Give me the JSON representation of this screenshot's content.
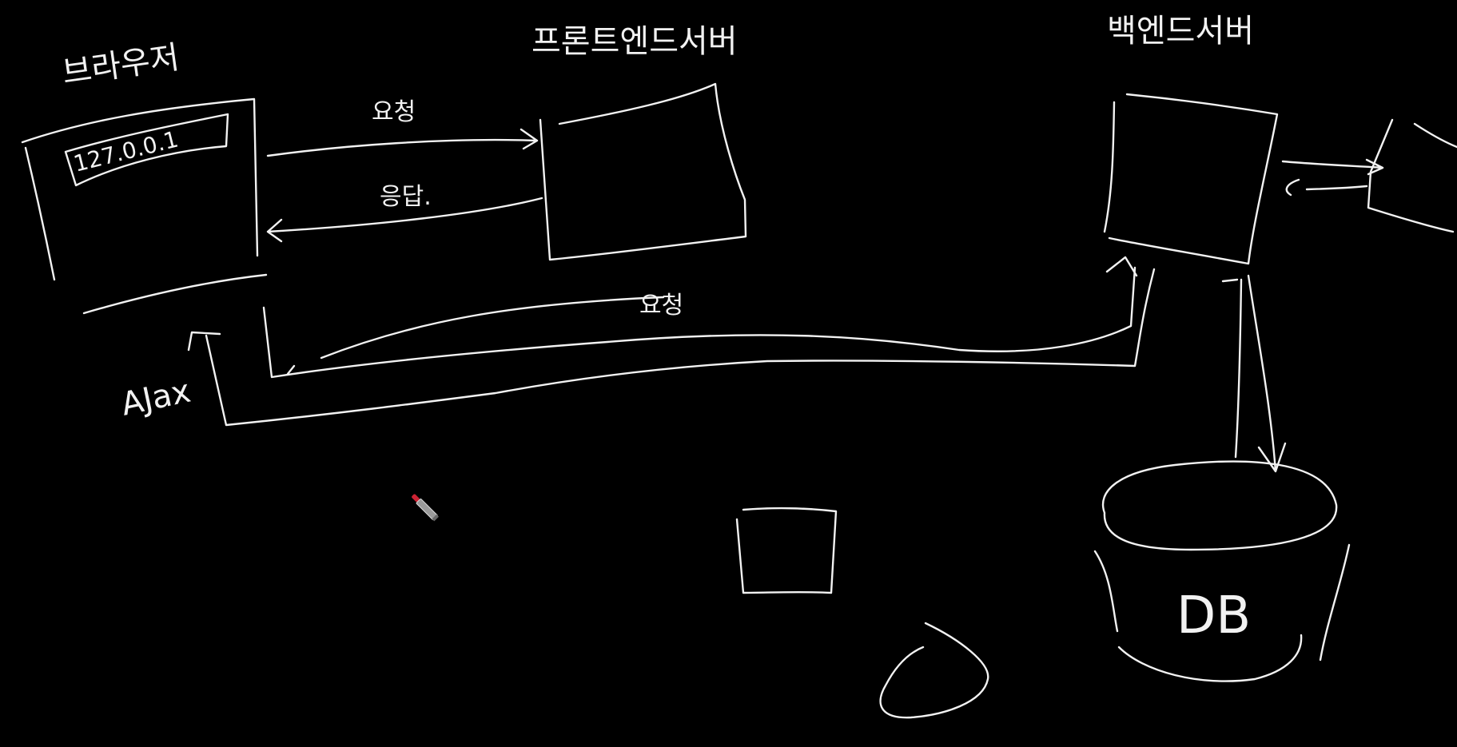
{
  "canvas": {
    "background": "#000000",
    "ink": "#f2f2f2",
    "cursor_tip": "#cc2233"
  },
  "labels": {
    "browser": "브라우저",
    "address": "127.0.0.1",
    "frontend_server": "프론트엔드서버",
    "backend_server": "백엔드서버",
    "request_top": "요청",
    "response": "응답.",
    "request_bottom": "요청",
    "ajax": "AJax",
    "db": "DB"
  },
  "cursor": {
    "icon": "pen-cursor-icon"
  }
}
